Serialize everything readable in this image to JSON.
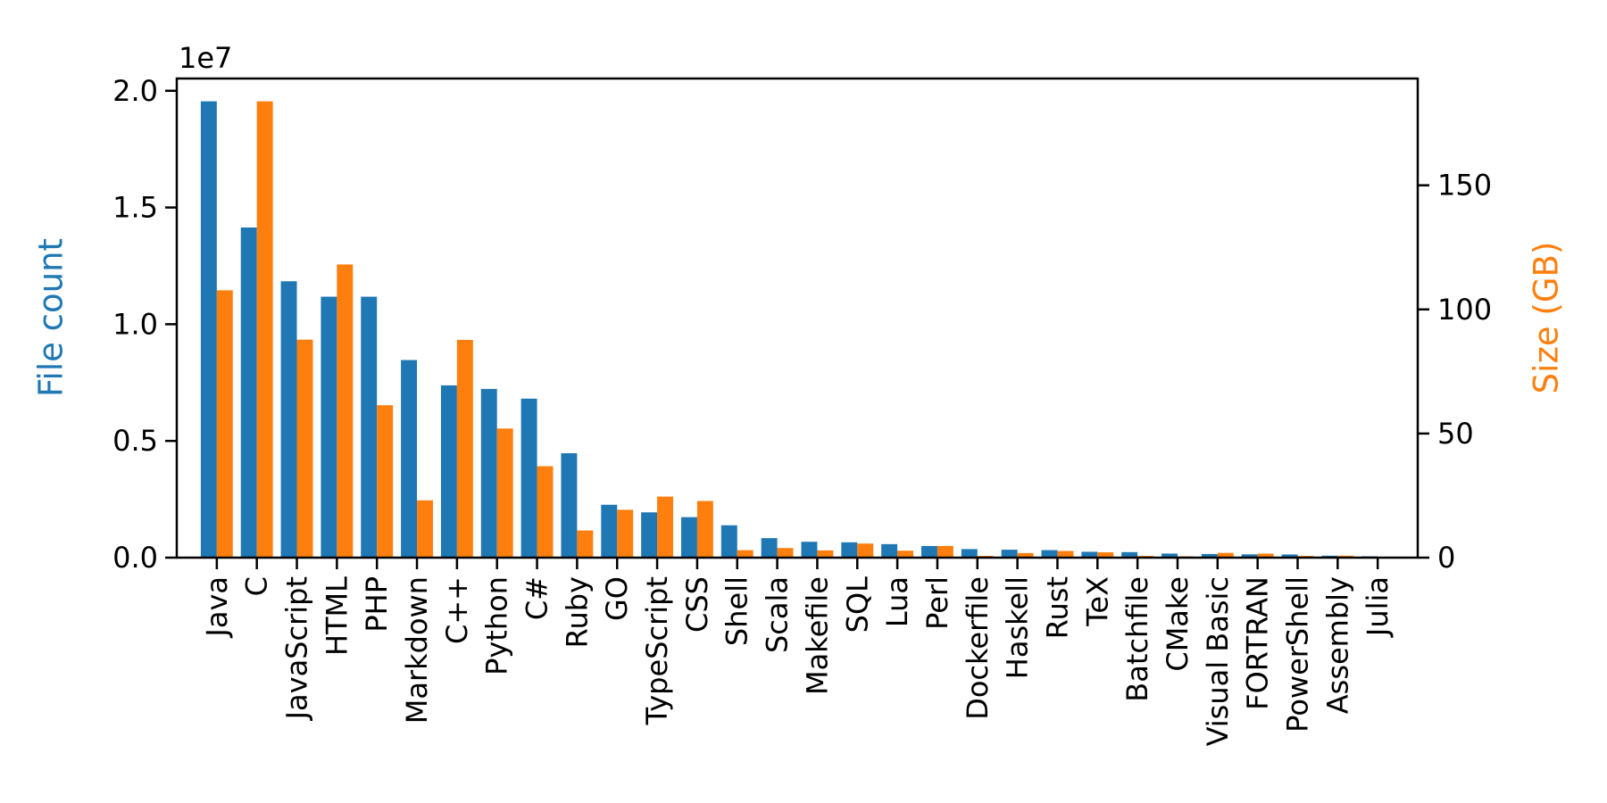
{
  "chart_data": {
    "type": "bar",
    "title": "",
    "offset_text": "1e7",
    "ylabel_left": "File count",
    "ylabel_right": "Size (GB)",
    "xlabel": "",
    "grid": false,
    "legend_position": "none",
    "categories": [
      "Java",
      "C",
      "JavaScript",
      "HTML",
      "PHP",
      "Markdown",
      "C++",
      "Python",
      "C#",
      "Ruby",
      "GO",
      "TypeScript",
      "CSS",
      "Shell",
      "Scala",
      "Makefile",
      "SQL",
      "Lua",
      "Perl",
      "Dockerfile",
      "Haskell",
      "Rust",
      "TeX",
      "Batchfile",
      "CMake",
      "Visual Basic",
      "FORTRAN",
      "PowerShell",
      "Assembly",
      "Julia"
    ],
    "series": [
      {
        "name": "File count",
        "axis": "left",
        "color": "#1f77b4",
        "values": [
          19548190,
          14143113,
          11839883,
          11178557,
          11177610,
          8464626,
          7380520,
          7226626,
          6811652,
          4473331,
          2265436,
          1940406,
          1734406,
          1385648,
          835755,
          679430,
          656671,
          578554,
          497949,
          366505,
          340623,
          322431,
          251015,
          236945,
          175282,
          155652,
          142038,
          136846,
          82905,
          58317
        ]
      },
      {
        "name": "Size (GB)",
        "axis": "right",
        "color": "#ff7f0e",
        "values": [
          107.7,
          183.83,
          87.82,
          118.12,
          61.41,
          23.09,
          87.73,
          52.03,
          36.83,
          10.95,
          19.28,
          24.59,
          22.82,
          3.01,
          3.87,
          2.92,
          5.67,
          2.81,
          4.7,
          0.71,
          1.85,
          2.68,
          2.15,
          0.7,
          0.54,
          1.91,
          1.62,
          0.69,
          0.78,
          0.29
        ]
      }
    ],
    "axis_left": {
      "ticks": [
        0,
        5000000,
        10000000,
        15000000,
        20000000
      ],
      "tick_labels": [
        "0.0",
        "0.5",
        "1.0",
        "1.5",
        "2.0"
      ],
      "ylim": [
        0,
        20525600
      ]
    },
    "axis_right": {
      "ticks": [
        0,
        50,
        100,
        150
      ],
      "tick_labels": [
        "0",
        "50",
        "100",
        "150"
      ],
      "ylim": [
        0,
        193.02
      ]
    }
  },
  "colors": {
    "file_count": "#1f77b4",
    "size_gb": "#ff7f0e",
    "axis": "#000000",
    "background": "#ffffff"
  }
}
